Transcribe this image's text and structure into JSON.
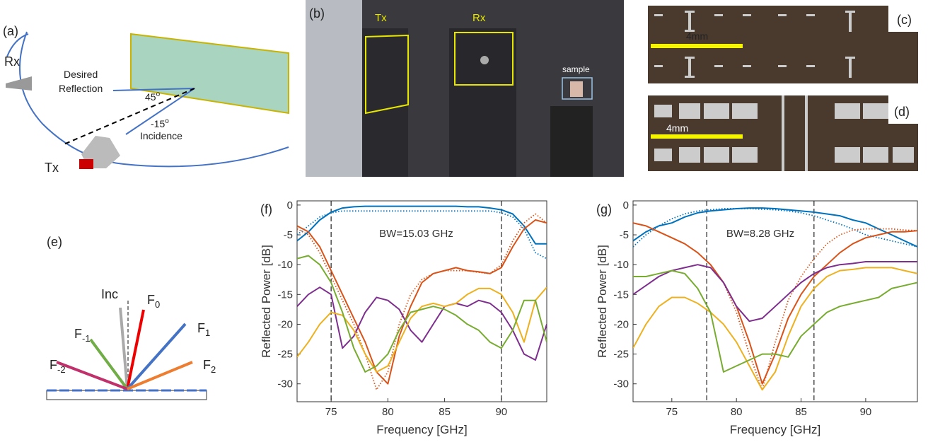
{
  "panels": {
    "a": {
      "label": "(a)",
      "rx": "Rx",
      "tx": "Tx",
      "reflection": [
        "Desired",
        "Reflection"
      ],
      "angle": {
        "text": "45",
        "sup": "o"
      },
      "incidence_angle": {
        "text": "-15",
        "sup": "o"
      },
      "incidence": "Incidence"
    },
    "b": {
      "label": "(b)",
      "tx": "Tx",
      "rx": "Rx",
      "sample": "sample"
    },
    "c": {
      "label": "(c)",
      "scale": "4mm"
    },
    "d": {
      "label": "(d)",
      "scale": "4mm"
    },
    "e": {
      "label": "(e)",
      "inc": "Inc",
      "orders": [
        {
          "text": "F",
          "sub": "0"
        },
        {
          "text": "F",
          "sub": "-1"
        },
        {
          "text": "F",
          "sub": "1"
        },
        {
          "text": "F",
          "sub": "-2"
        },
        {
          "text": "F",
          "sub": "2"
        }
      ]
    }
  },
  "chart_data": [
    {
      "type": "line",
      "panel_label": "(f)",
      "annotation": "BW=15.03 GHz",
      "x_label": "Frequency [GHz]",
      "y_label": "Reflected Power [dB]",
      "x": [
        72,
        73,
        74,
        75,
        76,
        77,
        78,
        79,
        80,
        81,
        82,
        83,
        84,
        85,
        86,
        87,
        88,
        89,
        90,
        91,
        92,
        93,
        94
      ],
      "xlim": [
        72,
        94
      ],
      "ylim": [
        -33,
        0.7
      ],
      "xticks": [
        75,
        80,
        85,
        90
      ],
      "yticks": [
        0,
        -5,
        -10,
        -15,
        -20,
        -25,
        -30
      ],
      "vlines": [
        75,
        90
      ],
      "series": [
        {
          "color": "#0072bd",
          "linestyle": "solid",
          "values": [
            -6,
            -4.5,
            -2.5,
            -1.2,
            -0.5,
            -0.3,
            -0.2,
            -0.2,
            -0.2,
            -0.2,
            -0.2,
            -0.2,
            -0.2,
            -0.2,
            -0.2,
            -0.3,
            -0.3,
            -0.5,
            -0.8,
            -1.5,
            -3.5,
            -6.5,
            -6.5
          ]
        },
        {
          "color": "#0072bd",
          "linestyle": "dotted",
          "values": [
            -5,
            -3.5,
            -2,
            -1.3,
            -1,
            -1,
            -1,
            -1,
            -1,
            -1,
            -1,
            -1,
            -1,
            -1,
            -1,
            -1,
            -1,
            -1,
            -1.3,
            -2,
            -4,
            -8,
            -9
          ]
        },
        {
          "color": "#d95319",
          "linestyle": "solid",
          "values": [
            -3.5,
            -4.5,
            -7,
            -11,
            -15,
            -19,
            -23,
            -28,
            -30,
            -22,
            -17,
            -13,
            -11.5,
            -11,
            -10.5,
            -11,
            -11.2,
            -11.5,
            -10.5,
            -7,
            -4,
            -2.5,
            -3
          ]
        },
        {
          "color": "#d95319",
          "linestyle": "dotted",
          "values": [
            -4,
            -5,
            -8,
            -12,
            -16,
            -20,
            -25,
            -31,
            -28,
            -20,
            -15,
            -12.5,
            -11.5,
            -11,
            -11,
            -11,
            -11.3,
            -11.5,
            -10,
            -6,
            -3,
            -1.5,
            -3
          ]
        },
        {
          "color": "#7e2f8e",
          "linestyle": "solid",
          "values": [
            -17,
            -15,
            -13.8,
            -15,
            -24,
            -22,
            -18,
            -15.5,
            -16,
            -17.5,
            -21,
            -23,
            -20,
            -17,
            -16.5,
            -17,
            -16,
            -16.5,
            -18,
            -21,
            -25,
            -26,
            -20
          ]
        },
        {
          "color": "#edb120",
          "linestyle": "solid",
          "values": [
            -25.5,
            -23,
            -20,
            -18,
            -18.5,
            -21,
            -25,
            -28,
            -27,
            -23,
            -19,
            -17,
            -16.5,
            -17,
            -16.5,
            -15,
            -14,
            -14,
            -15,
            -18,
            -23,
            -16,
            -13.8
          ]
        },
        {
          "color": "#77ac30",
          "linestyle": "solid",
          "values": [
            -9,
            -8.5,
            -10,
            -13,
            -18,
            -24,
            -28,
            -27,
            -25,
            -21,
            -18,
            -17.5,
            -17,
            -17.5,
            -18.5,
            -20,
            -21,
            -23,
            -24,
            -21,
            -16,
            -16,
            -23
          ]
        }
      ]
    },
    {
      "type": "line",
      "panel_label": "(g)",
      "annotation": "BW=8.28 GHz",
      "x_label": "Frequency [GHz]",
      "y_label": "Reflected Power [dB]",
      "x": [
        72,
        73,
        74,
        75,
        76,
        77,
        78,
        79,
        80,
        81,
        82,
        83,
        84,
        85,
        86,
        87,
        88,
        89,
        90,
        91,
        92,
        93,
        94
      ],
      "xlim": [
        72,
        94
      ],
      "ylim": [
        -33,
        0.7
      ],
      "xticks": [
        75,
        80,
        85,
        90
      ],
      "yticks": [
        0,
        -5,
        -10,
        -15,
        -20,
        -25,
        -30
      ],
      "vlines": [
        77.7,
        86
      ],
      "series": [
        {
          "color": "#0072bd",
          "linestyle": "solid",
          "values": [
            -6,
            -4.5,
            -3.5,
            -3,
            -2,
            -1.3,
            -1,
            -0.8,
            -0.6,
            -0.5,
            -0.5,
            -0.6,
            -0.8,
            -1,
            -1.2,
            -1.5,
            -1.8,
            -2.5,
            -3,
            -4,
            -5,
            -6,
            -7
          ]
        },
        {
          "color": "#0072bd",
          "linestyle": "dotted",
          "values": [
            -7,
            -5,
            -3.5,
            -2.3,
            -1.5,
            -1,
            -0.8,
            -0.6,
            -0.6,
            -0.6,
            -0.7,
            -0.8,
            -1,
            -1.3,
            -1.8,
            -2.5,
            -3.2,
            -4,
            -5,
            -5.5,
            -6,
            -6.5,
            -7
          ]
        },
        {
          "color": "#d95319",
          "linestyle": "solid",
          "values": [
            -3,
            -3.5,
            -4.5,
            -5.5,
            -6.5,
            -8,
            -10,
            -13,
            -17,
            -23,
            -30,
            -25,
            -19,
            -15,
            -12,
            -10,
            -8,
            -6.5,
            -5.5,
            -5,
            -4.5,
            -4.5,
            -4.3
          ]
        },
        {
          "color": "#d95319",
          "linestyle": "dotted",
          "values": [
            -3,
            -3.5,
            -4.5,
            -5.5,
            -6.5,
            -8,
            -10,
            -13,
            -18,
            -25,
            -31,
            -23,
            -16,
            -12,
            -9,
            -6.5,
            -5,
            -4.2,
            -4,
            -4,
            -4,
            -4.2,
            -4.3
          ]
        },
        {
          "color": "#7e2f8e",
          "linestyle": "solid",
          "values": [
            -15,
            -13.5,
            -12,
            -11,
            -10.5,
            -10,
            -10.5,
            -13,
            -17,
            -19.5,
            -19,
            -17,
            -15,
            -13,
            -11.5,
            -10.5,
            -10,
            -9.8,
            -9.5,
            -9.5,
            -9.5,
            -9.5,
            -9.5
          ]
        },
        {
          "color": "#edb120",
          "linestyle": "solid",
          "values": [
            -24,
            -20,
            -17,
            -15.5,
            -15.5,
            -16.5,
            -18,
            -20,
            -23,
            -27,
            -31,
            -28,
            -22,
            -17,
            -14,
            -12,
            -11,
            -10.8,
            -10.5,
            -10.5,
            -10.5,
            -11,
            -11.5
          ]
        },
        {
          "color": "#77ac30",
          "linestyle": "solid",
          "values": [
            -12,
            -12,
            -11.5,
            -11,
            -11.5,
            -14,
            -18,
            -28,
            -27,
            -26,
            -25,
            -25,
            -25.5,
            -22,
            -20,
            -18,
            -17,
            -16.5,
            -16,
            -15.5,
            -14,
            -13.5,
            -13
          ]
        }
      ]
    }
  ]
}
